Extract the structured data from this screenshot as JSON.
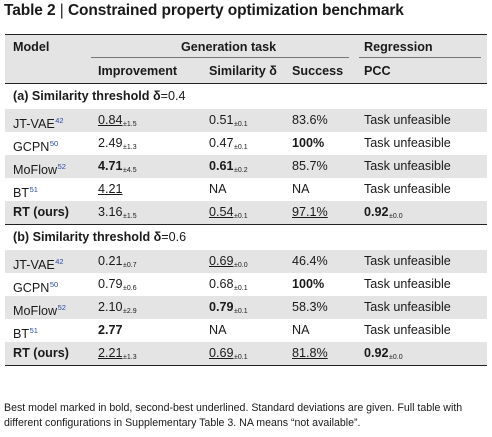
{
  "title": {
    "prefix": "Table 2",
    "separator": "|",
    "text": "Constrained property optimization benchmark"
  },
  "header": {
    "model": "Model",
    "generation_task": "Generation task",
    "regression": "Regression",
    "improvement": "Improvement",
    "similarity": "Similarity δ",
    "success": "Success",
    "pcc": "PCC"
  },
  "sections": [
    {
      "label_bold": "(a) Similarity threshold δ",
      "label_rest": "=0.4",
      "rows": [
        {
          "model": "JT-VAE",
          "ref": "42",
          "imp": "0.84",
          "imp_sd": "±1.5",
          "sim": "0.51",
          "sim_sd": "±0.1",
          "succ": "83.6%",
          "pcc": "Task unfeasible",
          "pcc_sd": ""
        },
        {
          "model": "GCPN",
          "ref": "50",
          "imp": "2.49",
          "imp_sd": "±1.3",
          "sim": "0.47",
          "sim_sd": "±0.1",
          "succ": "100%",
          "pcc": "Task unfeasible",
          "pcc_sd": ""
        },
        {
          "model": "MoFlow",
          "ref": "52",
          "imp": "4.71",
          "imp_sd": "±4.5",
          "sim": "0.61",
          "sim_sd": "±0.2",
          "succ": "85.7%",
          "pcc": "Task unfeasible",
          "pcc_sd": ""
        },
        {
          "model": "BT",
          "ref": "51",
          "imp": "4.21",
          "imp_sd": "",
          "sim": "NA",
          "sim_sd": "",
          "succ": "NA",
          "pcc": "Task unfeasible",
          "pcc_sd": ""
        },
        {
          "model": "RT (ours)",
          "ref": "",
          "imp": "3.16",
          "imp_sd": "±1.5",
          "sim": "0.54",
          "sim_sd": "±0.1",
          "succ": "97.1%",
          "pcc": "0.92",
          "pcc_sd": "±0.0"
        }
      ]
    },
    {
      "label_bold": "(b) Similarity threshold δ",
      "label_rest": "=0.6",
      "rows": [
        {
          "model": "JT-VAE",
          "ref": "42",
          "imp": "0.21",
          "imp_sd": "±0.7",
          "sim": "0.69",
          "sim_sd": "±0.0",
          "succ": "46.4%",
          "pcc": "Task unfeasible",
          "pcc_sd": ""
        },
        {
          "model": "GCPN",
          "ref": "50",
          "imp": "0.79",
          "imp_sd": "±0.6",
          "sim": "0.68",
          "sim_sd": "±0.1",
          "succ": "100%",
          "pcc": "Task unfeasible",
          "pcc_sd": ""
        },
        {
          "model": "MoFlow",
          "ref": "52",
          "imp": "2.10",
          "imp_sd": "±2.9",
          "sim": "0.79",
          "sim_sd": "±0.1",
          "succ": "58.3%",
          "pcc": "Task unfeasible",
          "pcc_sd": ""
        },
        {
          "model": "BT",
          "ref": "51",
          "imp": "2.77",
          "imp_sd": "",
          "sim": "NA",
          "sim_sd": "",
          "succ": "NA",
          "pcc": "Task unfeasible",
          "pcc_sd": ""
        },
        {
          "model": "RT (ours)",
          "ref": "",
          "imp": "2.21",
          "imp_sd": "±1.3",
          "sim": "0.69",
          "sim_sd": "±0.1",
          "succ": "81.8%",
          "pcc": "0.92",
          "pcc_sd": "±0.0"
        }
      ]
    }
  ],
  "caption": "Best model marked in bold, second-best underlined. Standard deviations are given. Full table with different configurations in Supplementary Table 3. NA means “not available”."
}
